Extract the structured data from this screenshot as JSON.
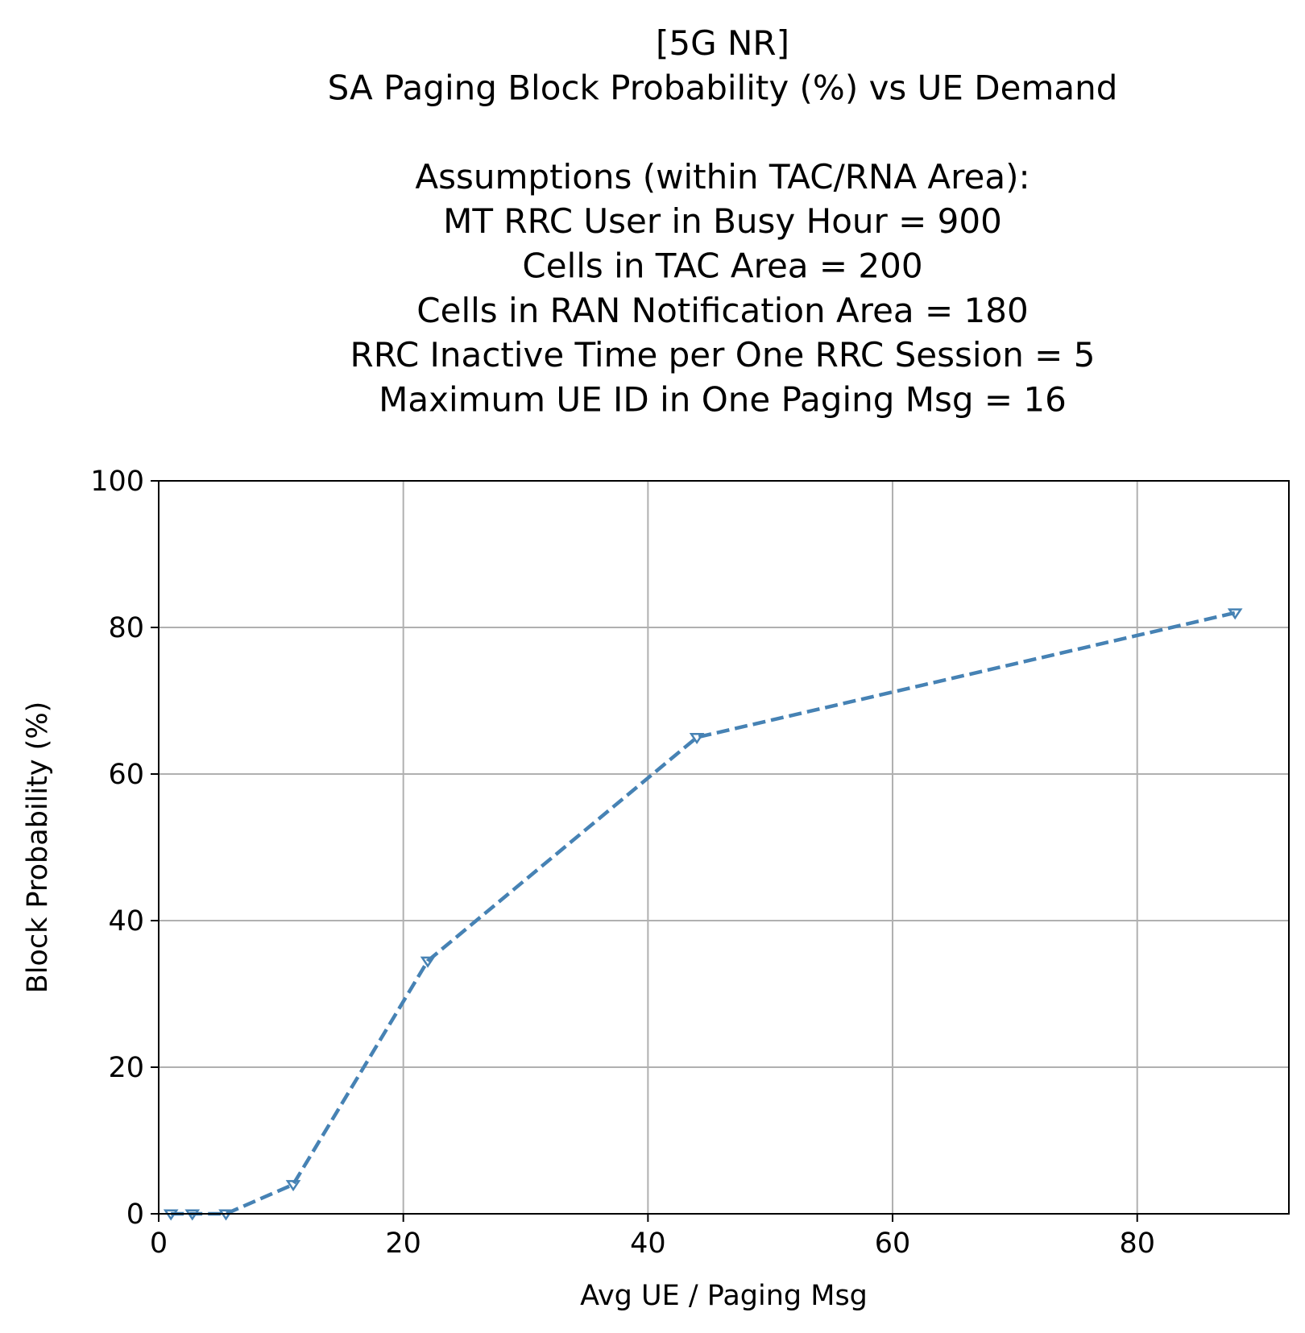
{
  "chart_data": {
    "type": "line",
    "title_lines": [
      "[5G NR]",
      "SA Paging Block Probability (%) vs UE Demand",
      "",
      "Assumptions (within TAC/RNA Area):",
      "MT RRC User in Busy Hour = 900",
      "Cells in TAC Area = 200",
      "Cells in RAN Notification Area = 180",
      "RRC Inactive Time per One RRC Session = 5",
      "Maximum UE ID in One Paging Msg = 16"
    ],
    "xlabel": "Avg UE / Paging Msg",
    "ylabel": "Block Probability (%)",
    "xlim": [
      0,
      92.4
    ],
    "ylim": [
      0,
      100
    ],
    "xticks": [
      0,
      20,
      40,
      60,
      80
    ],
    "yticks": [
      0,
      20,
      40,
      60,
      80,
      100
    ],
    "grid": true,
    "series": [
      {
        "x": [
          1,
          2.75,
          5.5,
          11,
          22,
          44,
          88
        ],
        "y": [
          0,
          0,
          0,
          4,
          34.5,
          65,
          82
        ],
        "color": "#4682b4",
        "line_style": "dashed",
        "marker": "triangle-down"
      }
    ]
  }
}
